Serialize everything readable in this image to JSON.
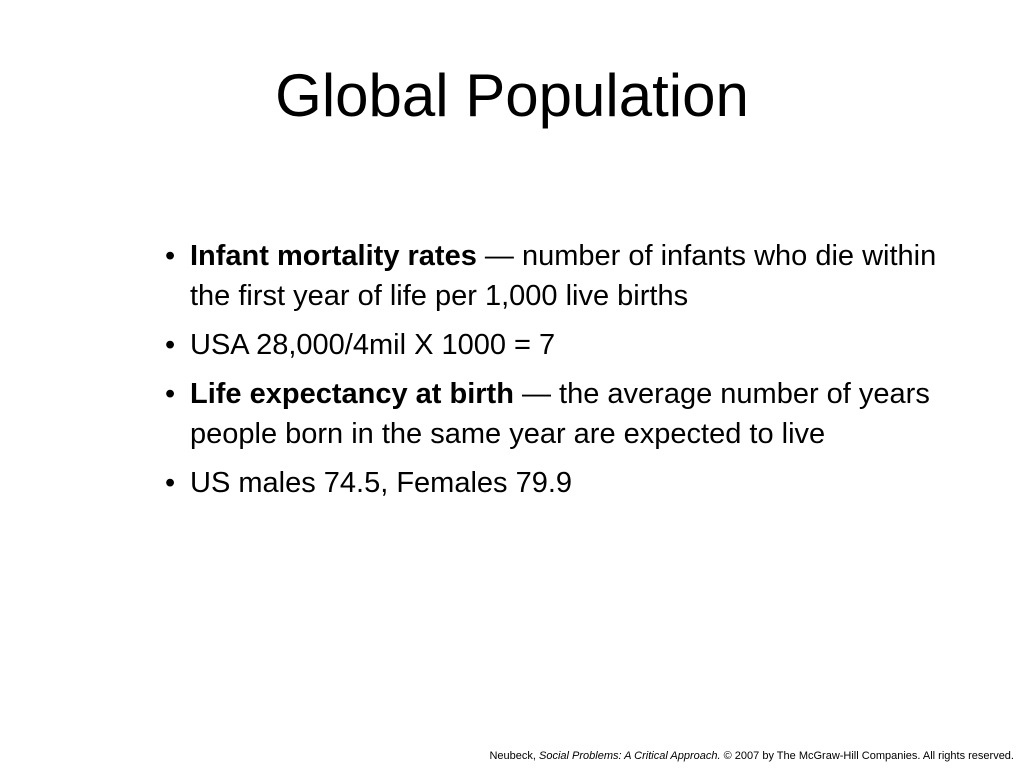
{
  "title": "Global Population",
  "bullets": [
    {
      "term": "Infant mortality rates",
      "text": "— number of infants who die within the first year of life per 1,000 live births"
    },
    {
      "text": "USA 28,000/4mil X 1000 = 7"
    },
    {
      "term": "Life expectancy at birth",
      "text": "— the average number of years people born in the same year are expected to live"
    },
    {
      "text": "US males 74.5, Females 79.9"
    }
  ],
  "footer": {
    "author": "Neubeck,",
    "book": "Social Problems: A Critical Approach.",
    "rights": "© 2007 by The McGraw-Hill Companies. All rights reserved."
  }
}
